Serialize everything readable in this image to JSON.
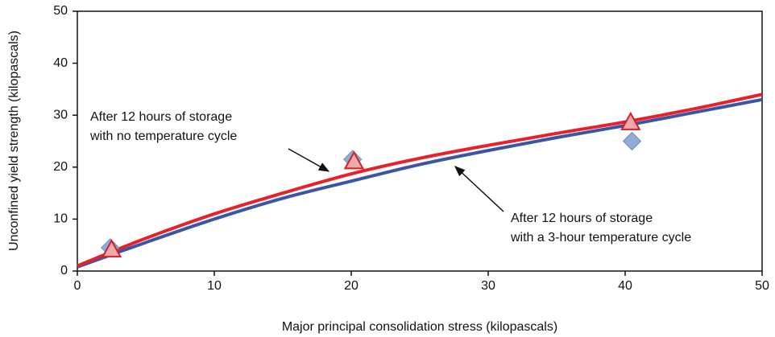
{
  "chart_data": {
    "type": "scatter",
    "xlabel": "Major principal consolidation stress (kilopascals)",
    "ylabel": "Unconfined yield strength (kilopascals)",
    "xlim": [
      0,
      50
    ],
    "xticks": [
      0,
      10,
      20,
      30,
      40,
      50
    ],
    "ylim": [
      0,
      50
    ],
    "yticks": [
      0,
      10,
      20,
      30,
      40,
      50
    ],
    "series": [
      {
        "mode": "line",
        "color": "#3a55a4",
        "x": [
          0,
          5,
          10,
          15,
          20,
          25,
          30,
          35,
          40,
          45,
          50
        ],
        "values": [
          0.8,
          5.5,
          10,
          14,
          17.3,
          20.5,
          23.2,
          25.7,
          28,
          30.5,
          33
        ]
      },
      {
        "mode": "line",
        "color": "#e8202a",
        "x": [
          0,
          5,
          10,
          15,
          20,
          25,
          30,
          35,
          40,
          45,
          50
        ],
        "values": [
          1,
          6.3,
          11,
          15,
          18.7,
          21.7,
          24.2,
          26.5,
          28.7,
          31.2,
          34
        ]
      },
      {
        "mode": "markers",
        "marker": "diamond",
        "color": "#8fadd6",
        "x": [
          2.4,
          20.1,
          40.5
        ],
        "values": [
          4.5,
          21.5,
          25
        ]
      },
      {
        "mode": "markers",
        "marker": "triangle",
        "color": "#f0a8aa",
        "x": [
          2.5,
          20.2,
          40.4
        ],
        "values": [
          4,
          21,
          28.5
        ]
      }
    ],
    "annotations": [
      {
        "lines": [
          "After 12 hours of storage",
          "with no temperature cycle"
        ]
      },
      {
        "lines": [
          "After 12 hours of storage",
          "with a 3-hour temperature cycle"
        ]
      }
    ]
  }
}
